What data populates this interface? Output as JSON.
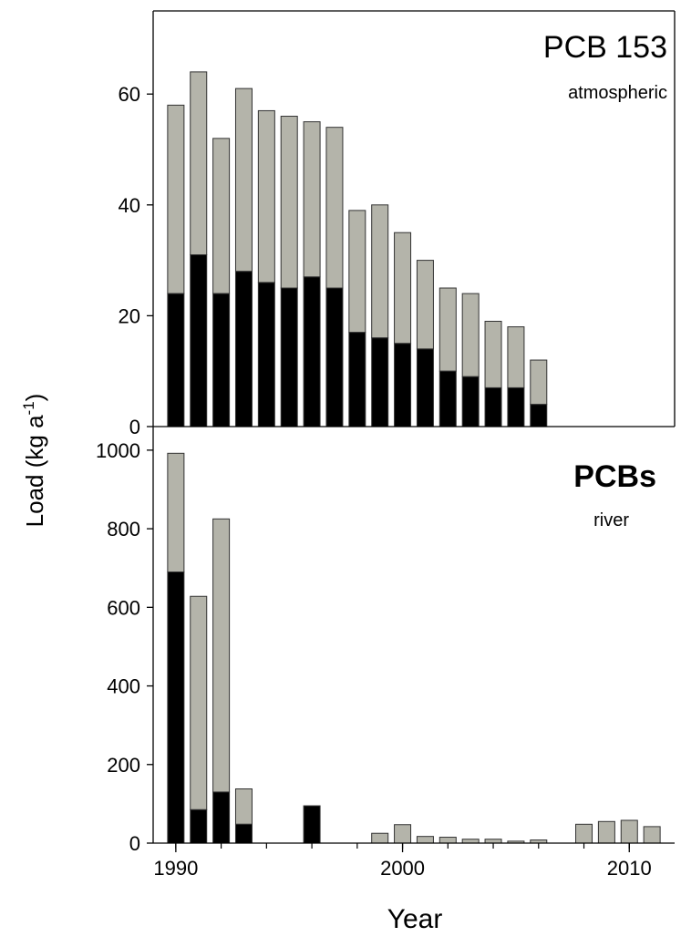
{
  "chart_data": [
    {
      "type": "bar",
      "stacked": true,
      "title": "PCB 153",
      "subtitle": "atmospheric",
      "xlabel": "Year",
      "ylabel": "Load (kg a-1)",
      "xlim": [
        1989,
        2012
      ],
      "ylim": [
        0,
        75
      ],
      "xticks": [
        1990,
        2000,
        2010
      ],
      "yticks": [
        0,
        20,
        40,
        60
      ],
      "colors": {
        "lower": "#000000",
        "upper": "#b4b4aa",
        "edge": "#333333"
      },
      "x": [
        1990,
        1991,
        1992,
        1993,
        1994,
        1995,
        1996,
        1997,
        1998,
        1999,
        2000,
        2001,
        2002,
        2003,
        2004,
        2005,
        2006
      ],
      "series": [
        {
          "values": [
            24,
            31,
            24,
            28,
            26,
            25,
            27,
            25,
            17,
            16,
            15,
            14,
            10,
            9,
            7,
            7,
            4
          ]
        },
        {
          "values": [
            34,
            33,
            28,
            33,
            31,
            31,
            28,
            29,
            22,
            24,
            20,
            16,
            15,
            15,
            12,
            11,
            8
          ]
        }
      ]
    },
    {
      "type": "bar",
      "stacked": true,
      "title": "PCBs",
      "subtitle": "river",
      "xlabel": "Year",
      "ylabel": "Load (kg a-1)",
      "xlim": [
        1989,
        2012
      ],
      "ylim": [
        0,
        1060
      ],
      "xticks": [
        1990,
        2000,
        2010
      ],
      "yticks": [
        0,
        200,
        400,
        600,
        800,
        1000
      ],
      "colors": {
        "lower": "#000000",
        "upper": "#b4b4aa",
        "edge": "#333333"
      },
      "x": [
        1990,
        1991,
        1992,
        1993,
        1996,
        1999,
        2000,
        2001,
        2002,
        2003,
        2004,
        2005,
        2006,
        2008,
        2009,
        2010,
        2011
      ],
      "series": [
        {
          "values": [
            690,
            85,
            130,
            48,
            95,
            0,
            0,
            0,
            0,
            0,
            0,
            0,
            0,
            0,
            0,
            0,
            0
          ]
        },
        {
          "values": [
            302,
            543,
            695,
            90,
            0,
            25,
            47,
            17,
            15,
            10,
            10,
            5,
            8,
            48,
            55,
            58,
            42
          ]
        }
      ]
    }
  ]
}
